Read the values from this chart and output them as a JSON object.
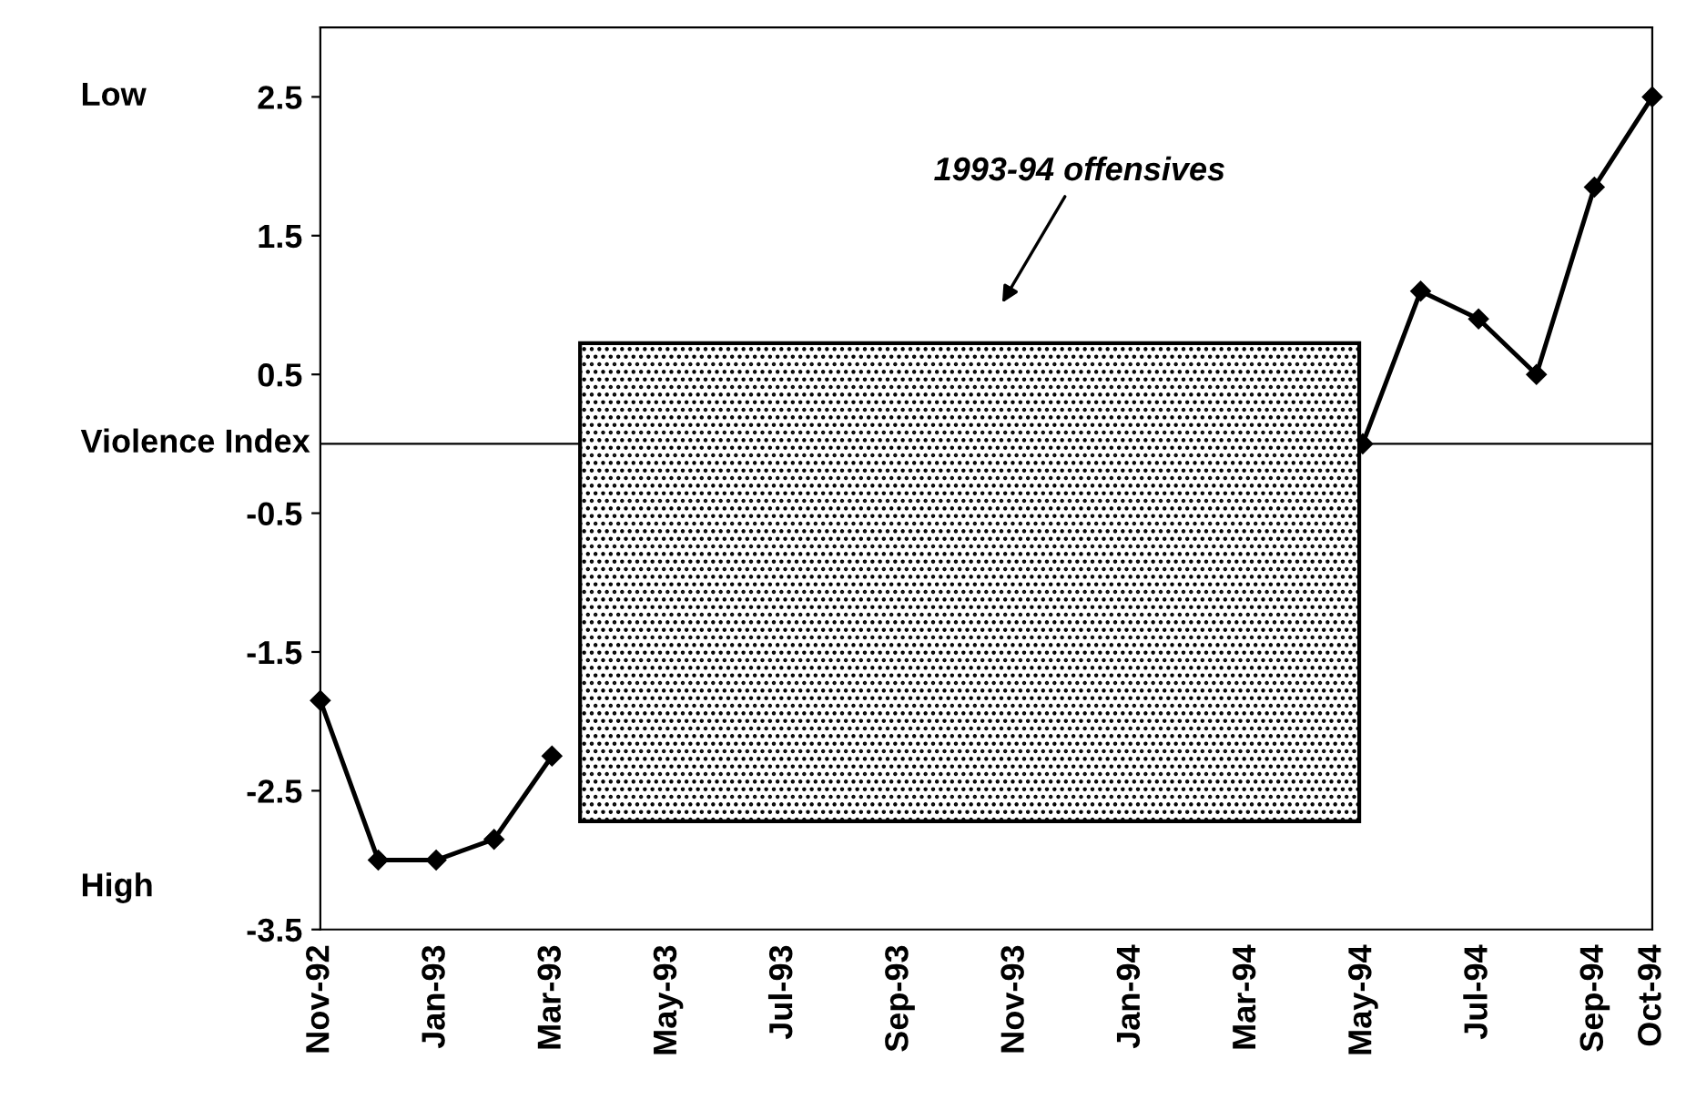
{
  "chart_data": {
    "type": "line",
    "ylabel": "Violence Index",
    "categories": [
      "Nov-92",
      null,
      "Jan-93",
      null,
      "Mar-93",
      null,
      "May-93",
      null,
      "Jul-93",
      null,
      "Sep-93",
      null,
      "Nov-93",
      null,
      "Jan-94",
      null,
      "Mar-94",
      null,
      "May-94",
      null,
      "Jul-94",
      null,
      "Sep-94",
      "Oct-94"
    ],
    "series": [
      {
        "color": "#000000",
        "values": [
          -1.85,
          -3.0,
          -3.0,
          -2.85,
          -2.25,
          null,
          null,
          null,
          null,
          null,
          null,
          null,
          null,
          null,
          null,
          null,
          null,
          null,
          0.0,
          1.1,
          0.9,
          0.5,
          1.85,
          2.5
        ]
      }
    ],
    "ylim": [
      -3.5,
      3.0
    ],
    "yticks": [
      2.5,
      1.5,
      0.5,
      -0.5,
      -1.5,
      -2.5,
      -3.5
    ],
    "ref_lines": [
      {
        "axis": "y",
        "value": 0,
        "color": "#000000"
      }
    ],
    "annotations": [
      "Low",
      "High",
      "1993-94 offensives"
    ],
    "marker": "diamond",
    "line_style": "solid",
    "grid": false,
    "legend": false
  }
}
